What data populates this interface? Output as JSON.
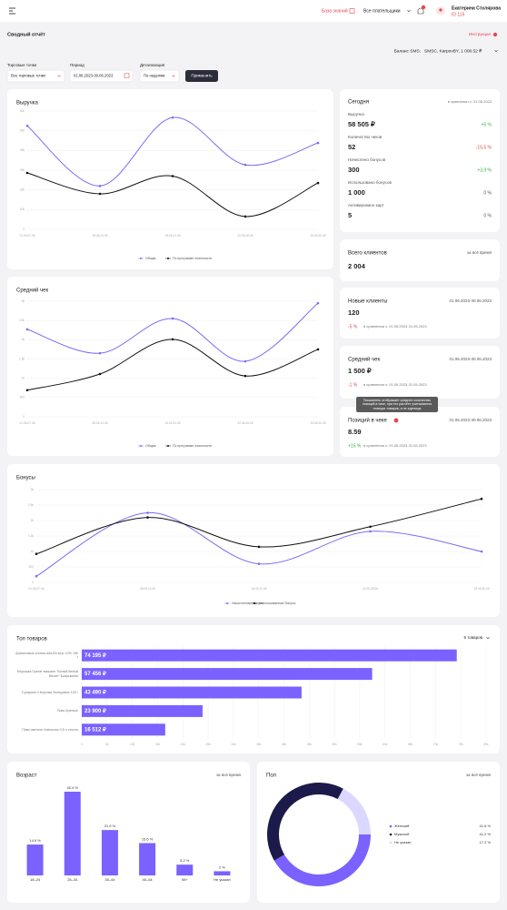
{
  "header": {
    "knowledge_base": "База знаний",
    "payer_select": "Все плательщики",
    "user_name": "Екатерина Столярова",
    "user_id": "ID 115"
  },
  "page": {
    "title": "Сводный отчёт",
    "instructions": "Инструкция",
    "sms_balance_label": "Баланс SMS:",
    "sms_balance_value": "SMSC, KarpovBY, 1 000.52 ₽"
  },
  "filters": {
    "points_label": "Торговые точки",
    "points_value": "Все торговые точки",
    "period_label": "Период",
    "period_value": "01.06.2023-30.06.2023",
    "detail_label": "Детализация",
    "detail_value": "По неделям",
    "apply": "Применить"
  },
  "today": {
    "title": "Сегодня",
    "compare": "в сравнении с: 01.06.2023",
    "rows": [
      {
        "label": "Выручка",
        "value": "58 505 ₽",
        "change": "+5 %"
      },
      {
        "label": "Количество чеков",
        "value": "52",
        "change": "-15,5 %"
      },
      {
        "label": "Начислено бонусов",
        "value": "300",
        "change": "+3,9 %"
      },
      {
        "label": "Использовано бонусов",
        "value": "1 000",
        "change": "0 %"
      },
      {
        "label": "Активировано карт",
        "value": "5",
        "change": "0 %"
      }
    ]
  },
  "cards": [
    {
      "title": "Всего клиентов",
      "period": "за всё время",
      "value": "2 004"
    },
    {
      "title": "Новые клиенты",
      "period": "01.06.2023-30.06.2023",
      "value": "120",
      "change": "-5 %",
      "compare": "в сравнении с: 01.05.2023-31.05.2023"
    },
    {
      "title": "Средний чек",
      "period": "01.06.2023-30.06.2023",
      "value": "1 500 ₽",
      "change": "-1 %",
      "compare": "в сравнении с: 01.05.2023-31.05.2023"
    },
    {
      "title": "Позиций в чеке",
      "period": "01.06.2023-30.06.2023",
      "value": "8.59",
      "change": "+15 %",
      "compare": "в сравнении с: 01.05.2023-31.05.2023"
    }
  ],
  "tooltip": "Показатель отображает среднее количество позиций в чеке, при его расчёте учитываются позиции товаров, а не единицы",
  "chart_data": [
    {
      "type": "line",
      "title": "Выручка",
      "categories": [
        "01.06-07.06",
        "08.06-14.06",
        "15.06-21.06",
        "22.06-28.06",
        "29.06-30.06"
      ],
      "series": [
        {
          "name": "Общая",
          "color": "#7b6cf6",
          "values": [
            52500,
            22000,
            56700,
            32700,
            43800
          ]
        },
        {
          "name": "По программе лояльности",
          "color": "#111111",
          "values": [
            28600,
            18000,
            27000,
            6500,
            23500
          ]
        }
      ],
      "ylim": [
        0,
        60000
      ],
      "yticks": [
        0,
        {
          "value": 10000,
          "label": "10k"
        },
        {
          "value": 20000,
          "label": "20k"
        },
        {
          "value": 30000,
          "label": "30k"
        },
        {
          "value": 40000,
          "label": "40k"
        },
        {
          "value": 50000,
          "label": "50k"
        },
        {
          "value": 60000,
          "label": "60k"
        }
      ],
      "grid": true
    },
    {
      "type": "line",
      "title": "Средний чек",
      "categories": [
        "01.06-07.06",
        "08.06-14.06",
        "15.06-21.06",
        "22.06-28.06",
        "29.06-30.06"
      ],
      "series": [
        {
          "name": "Общая",
          "color": "#7b6cf6",
          "values": [
            2270,
            1650,
            2550,
            1440,
            2950
          ]
        },
        {
          "name": "По программе лояльности",
          "color": "#111111",
          "values": [
            690,
            1110,
            2010,
            1060,
            1750
          ]
        }
      ],
      "ylim": [
        0,
        3000
      ],
      "yticks": [
        0,
        500,
        {
          "value": 1000,
          "label": "1k"
        },
        {
          "value": 1500,
          "label": "1.5k"
        },
        {
          "value": 2000,
          "label": "2k"
        },
        {
          "value": 2500,
          "label": "2.5k"
        },
        {
          "value": 3000,
          "label": "3k"
        }
      ],
      "grid": true
    },
    {
      "type": "line",
      "title": "Бонусы",
      "categories": [
        "01.06-07.06",
        "08.06-14.06",
        "15.06-21.06",
        "22.06-28.06",
        "29.06-30.06"
      ],
      "series": [
        {
          "name": "Начисленные бонусы",
          "color": "#7b6cf6",
          "values": [
            200,
            2250,
            600,
            1650,
            1000
          ]
        },
        {
          "name": "Использованные бонусы",
          "color": "#111111",
          "values": [
            920,
            2100,
            1150,
            1800,
            2700
          ]
        }
      ],
      "ylim": [
        0,
        3000
      ],
      "yticks": [
        0,
        500,
        {
          "value": 1000,
          "label": "1k"
        },
        {
          "value": 1500,
          "label": "1.5k"
        },
        {
          "value": 2000,
          "label": "2k"
        },
        {
          "value": 2500,
          "label": "2.5k"
        },
        {
          "value": 3000,
          "label": "3k"
        }
      ],
      "grid": true
    },
    {
      "type": "bar",
      "horizontal": true,
      "title": "Топ товаров",
      "select": "5 товаров",
      "categories": [
        "Арахисовые хлопья alfa-B3 жгут 12% 150 г",
        "Морошка Гранат машина \"Белый-белый Филин\" Боярышник",
        "Сухарики 3 Корочки Зельцовые 125 г",
        "Пиво Крепкое",
        "Пиво светлое Хмельное 0,5 л стекло"
      ],
      "values": [
        74195,
        57456,
        43490,
        23900,
        16512
      ],
      "value_labels": [
        "74 195 ₽",
        "57 456 ₽",
        "43 490 ₽",
        "23 900 ₽",
        "16 512 ₽"
      ],
      "color": "#7b61ff",
      "xlim": [
        0,
        80000
      ],
      "xticks": [
        0,
        {
          "value": 5000,
          "label": "5k"
        },
        {
          "value": 10000,
          "label": "10k"
        },
        {
          "value": 15000,
          "label": "15k"
        },
        {
          "value": 20000,
          "label": "20k"
        },
        {
          "value": 25000,
          "label": "25k"
        },
        {
          "value": 30000,
          "label": "30k"
        },
        {
          "value": 35000,
          "label": "35k"
        },
        {
          "value": 40000,
          "label": "40k"
        },
        {
          "value": 45000,
          "label": "45k"
        },
        {
          "value": 50000,
          "label": "50k"
        },
        {
          "value": 55000,
          "label": "55k"
        },
        {
          "value": 60000,
          "label": "60k"
        },
        {
          "value": 65000,
          "label": "65k"
        },
        {
          "value": 70000,
          "label": "70k"
        },
        {
          "value": 75000,
          "label": "75k"
        },
        {
          "value": 80000,
          "label": "80k"
        }
      ],
      "grid": true
    },
    {
      "type": "bar",
      "horizontal": false,
      "title": "Возраст",
      "period": "за всё время",
      "categories": [
        "18–24",
        "25–34",
        "35–44",
        "45–54",
        "55+",
        "Не указан"
      ],
      "values": [
        14.9,
        40.4,
        21.9,
        15.6,
        5.2,
        2
      ],
      "value_labels": [
        "14.9 %",
        "40.4 %",
        "21.9 %",
        "15.6 %",
        "5.2 %",
        "2 %"
      ],
      "color": "#7b61ff"
    },
    {
      "type": "pie",
      "donut": true,
      "title": "Пол",
      "period": "за всё время",
      "categories": [
        "Женский",
        "Мужской",
        "Не указан"
      ],
      "values": [
        41.6,
        41.2,
        17.2
      ],
      "value_labels": [
        "41.6 %",
        "41.2 %",
        "17.2 %"
      ],
      "colors": [
        "#7b61ff",
        "#1c1a4a",
        "#dcd7ff"
      ]
    }
  ]
}
